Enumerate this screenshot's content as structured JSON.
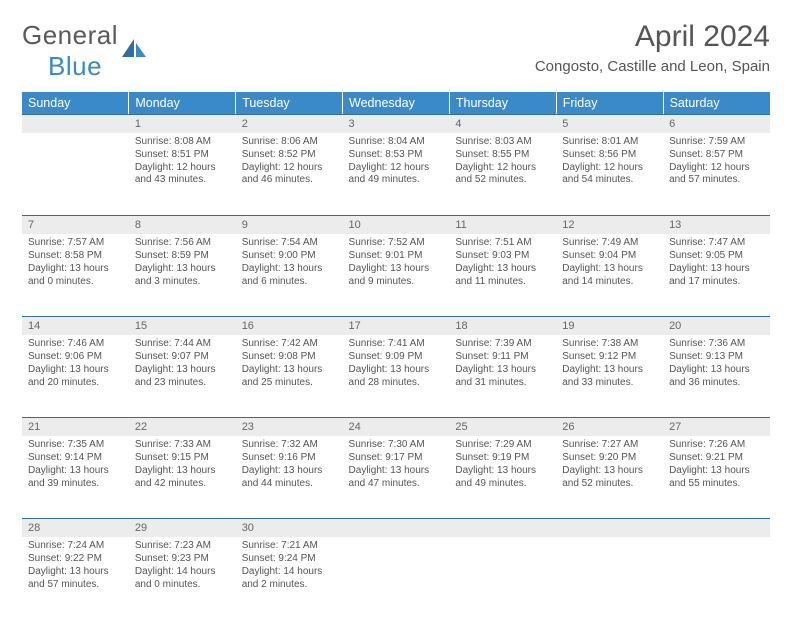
{
  "logo": {
    "word1": "General",
    "word2": "Blue"
  },
  "title": "April 2024",
  "location": "Congosto, Castille and Leon, Spain",
  "colors": {
    "header_bg": "#3a8ac9",
    "daynum_bg": "#ececec",
    "rule": "#2f6fa3",
    "text": "#555555"
  },
  "day_headers": [
    "Sunday",
    "Monday",
    "Tuesday",
    "Wednesday",
    "Thursday",
    "Friday",
    "Saturday"
  ],
  "weeks": [
    {
      "nums": [
        "",
        "1",
        "2",
        "3",
        "4",
        "5",
        "6"
      ],
      "cells": [
        null,
        {
          "sunrise": "8:08 AM",
          "sunset": "8:51 PM",
          "daylight": "12 hours and 43 minutes."
        },
        {
          "sunrise": "8:06 AM",
          "sunset": "8:52 PM",
          "daylight": "12 hours and 46 minutes."
        },
        {
          "sunrise": "8:04 AM",
          "sunset": "8:53 PM",
          "daylight": "12 hours and 49 minutes."
        },
        {
          "sunrise": "8:03 AM",
          "sunset": "8:55 PM",
          "daylight": "12 hours and 52 minutes."
        },
        {
          "sunrise": "8:01 AM",
          "sunset": "8:56 PM",
          "daylight": "12 hours and 54 minutes."
        },
        {
          "sunrise": "7:59 AM",
          "sunset": "8:57 PM",
          "daylight": "12 hours and 57 minutes."
        }
      ]
    },
    {
      "nums": [
        "7",
        "8",
        "9",
        "10",
        "11",
        "12",
        "13"
      ],
      "cells": [
        {
          "sunrise": "7:57 AM",
          "sunset": "8:58 PM",
          "daylight": "13 hours and 0 minutes."
        },
        {
          "sunrise": "7:56 AM",
          "sunset": "8:59 PM",
          "daylight": "13 hours and 3 minutes."
        },
        {
          "sunrise": "7:54 AM",
          "sunset": "9:00 PM",
          "daylight": "13 hours and 6 minutes."
        },
        {
          "sunrise": "7:52 AM",
          "sunset": "9:01 PM",
          "daylight": "13 hours and 9 minutes."
        },
        {
          "sunrise": "7:51 AM",
          "sunset": "9:03 PM",
          "daylight": "13 hours and 11 minutes."
        },
        {
          "sunrise": "7:49 AM",
          "sunset": "9:04 PM",
          "daylight": "13 hours and 14 minutes."
        },
        {
          "sunrise": "7:47 AM",
          "sunset": "9:05 PM",
          "daylight": "13 hours and 17 minutes."
        }
      ]
    },
    {
      "nums": [
        "14",
        "15",
        "16",
        "17",
        "18",
        "19",
        "20"
      ],
      "cells": [
        {
          "sunrise": "7:46 AM",
          "sunset": "9:06 PM",
          "daylight": "13 hours and 20 minutes."
        },
        {
          "sunrise": "7:44 AM",
          "sunset": "9:07 PM",
          "daylight": "13 hours and 23 minutes."
        },
        {
          "sunrise": "7:42 AM",
          "sunset": "9:08 PM",
          "daylight": "13 hours and 25 minutes."
        },
        {
          "sunrise": "7:41 AM",
          "sunset": "9:09 PM",
          "daylight": "13 hours and 28 minutes."
        },
        {
          "sunrise": "7:39 AM",
          "sunset": "9:11 PM",
          "daylight": "13 hours and 31 minutes."
        },
        {
          "sunrise": "7:38 AM",
          "sunset": "9:12 PM",
          "daylight": "13 hours and 33 minutes."
        },
        {
          "sunrise": "7:36 AM",
          "sunset": "9:13 PM",
          "daylight": "13 hours and 36 minutes."
        }
      ]
    },
    {
      "nums": [
        "21",
        "22",
        "23",
        "24",
        "25",
        "26",
        "27"
      ],
      "cells": [
        {
          "sunrise": "7:35 AM",
          "sunset": "9:14 PM",
          "daylight": "13 hours and 39 minutes."
        },
        {
          "sunrise": "7:33 AM",
          "sunset": "9:15 PM",
          "daylight": "13 hours and 42 minutes."
        },
        {
          "sunrise": "7:32 AM",
          "sunset": "9:16 PM",
          "daylight": "13 hours and 44 minutes."
        },
        {
          "sunrise": "7:30 AM",
          "sunset": "9:17 PM",
          "daylight": "13 hours and 47 minutes."
        },
        {
          "sunrise": "7:29 AM",
          "sunset": "9:19 PM",
          "daylight": "13 hours and 49 minutes."
        },
        {
          "sunrise": "7:27 AM",
          "sunset": "9:20 PM",
          "daylight": "13 hours and 52 minutes."
        },
        {
          "sunrise": "7:26 AM",
          "sunset": "9:21 PM",
          "daylight": "13 hours and 55 minutes."
        }
      ]
    },
    {
      "nums": [
        "28",
        "29",
        "30",
        "",
        "",
        "",
        ""
      ],
      "cells": [
        {
          "sunrise": "7:24 AM",
          "sunset": "9:22 PM",
          "daylight": "13 hours and 57 minutes."
        },
        {
          "sunrise": "7:23 AM",
          "sunset": "9:23 PM",
          "daylight": "14 hours and 0 minutes."
        },
        {
          "sunrise": "7:21 AM",
          "sunset": "9:24 PM",
          "daylight": "14 hours and 2 minutes."
        },
        null,
        null,
        null,
        null
      ]
    }
  ],
  "labels": {
    "sunrise": "Sunrise:",
    "sunset": "Sunset:",
    "daylight": "Daylight:"
  }
}
